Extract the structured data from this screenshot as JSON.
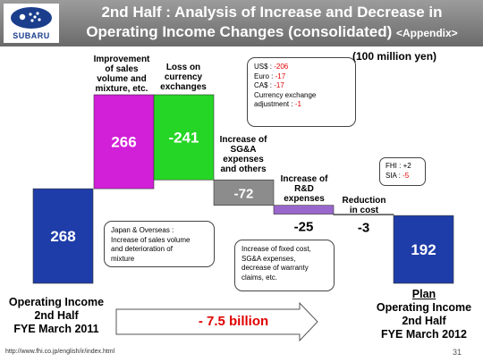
{
  "header": {
    "title_line1": "2nd Half : Analysis of Increase and Decrease in",
    "title_line2": "Operating Income Changes (consolidated)",
    "title_suffix": "<Appendix>",
    "logo_text": "SUBARU"
  },
  "unit": "(100 million yen)",
  "chart_data": {
    "type": "bar",
    "categories": [
      "Operating Income 2nd Half FYE March 2011",
      "Improvement of sales volume and mixture, etc.",
      "Loss on currency exchanges",
      "Increase of SG&A expenses and others",
      "Increase of R&D expenses",
      "Reduction in cost",
      "Plan Operating Income 2nd Half FYE March 2012"
    ],
    "values": [
      268,
      266,
      -241,
      -72,
      -25,
      -3,
      192
    ],
    "labels": [
      "268",
      "266",
      "-241",
      "-72",
      "-25",
      "-3",
      "192"
    ],
    "colors": [
      "#1f3da8",
      "#d21fd8",
      "#26d626",
      "#8c8c8c",
      "#9966cc",
      "#c8c8c8",
      "#1f3da8"
    ]
  },
  "category_labels": {
    "sales": [
      "Improvement",
      "of sales",
      "volume and",
      "mixture, etc."
    ],
    "fx": [
      "Loss on",
      "currency",
      "exchanges"
    ],
    "sga": [
      "Increase of",
      "SG&A",
      "expenses",
      "and others"
    ],
    "rd": [
      "Increase of",
      "R&D",
      "expenses"
    ],
    "cost": [
      "Reduction",
      "in cost"
    ]
  },
  "callouts": {
    "fx": {
      "usd_label": "US$ : ",
      "usd_value": "-206",
      "euro_label": "Euro : ",
      "euro_value": "-17",
      "cad_label": "CA$ : ",
      "cad_value": "-17",
      "adj_line1": "Currency exchange",
      "adj_line2_label": "adjustment : ",
      "adj_value": "-1"
    },
    "japan": {
      "line1": "Japan & Overseas :",
      "line2": "Increase of sales volume",
      "line3": "and deterioration of",
      "line4": "mixture"
    },
    "fixed": {
      "line1": "Increase of fixed cost,",
      "line2": "SG&A expenses,",
      "line3": "decrease of warranty",
      "line4": "claims, etc."
    },
    "fhi": {
      "fhi_label": "FHI : ",
      "fhi_value": "+2",
      "sia_label": "SIA : ",
      "sia_value": "-5"
    }
  },
  "bottom": {
    "left": [
      "Operating Income",
      "2nd Half",
      "FYE March 2011"
    ],
    "right_plan": "Plan",
    "right": [
      "Operating Income",
      "2nd Half",
      "FYE March 2012"
    ],
    "arrow_text": "- 7.5 billion"
  },
  "footer": {
    "url": "http://www.fhi.co.jp/english/ir/index.html",
    "page": "31"
  }
}
